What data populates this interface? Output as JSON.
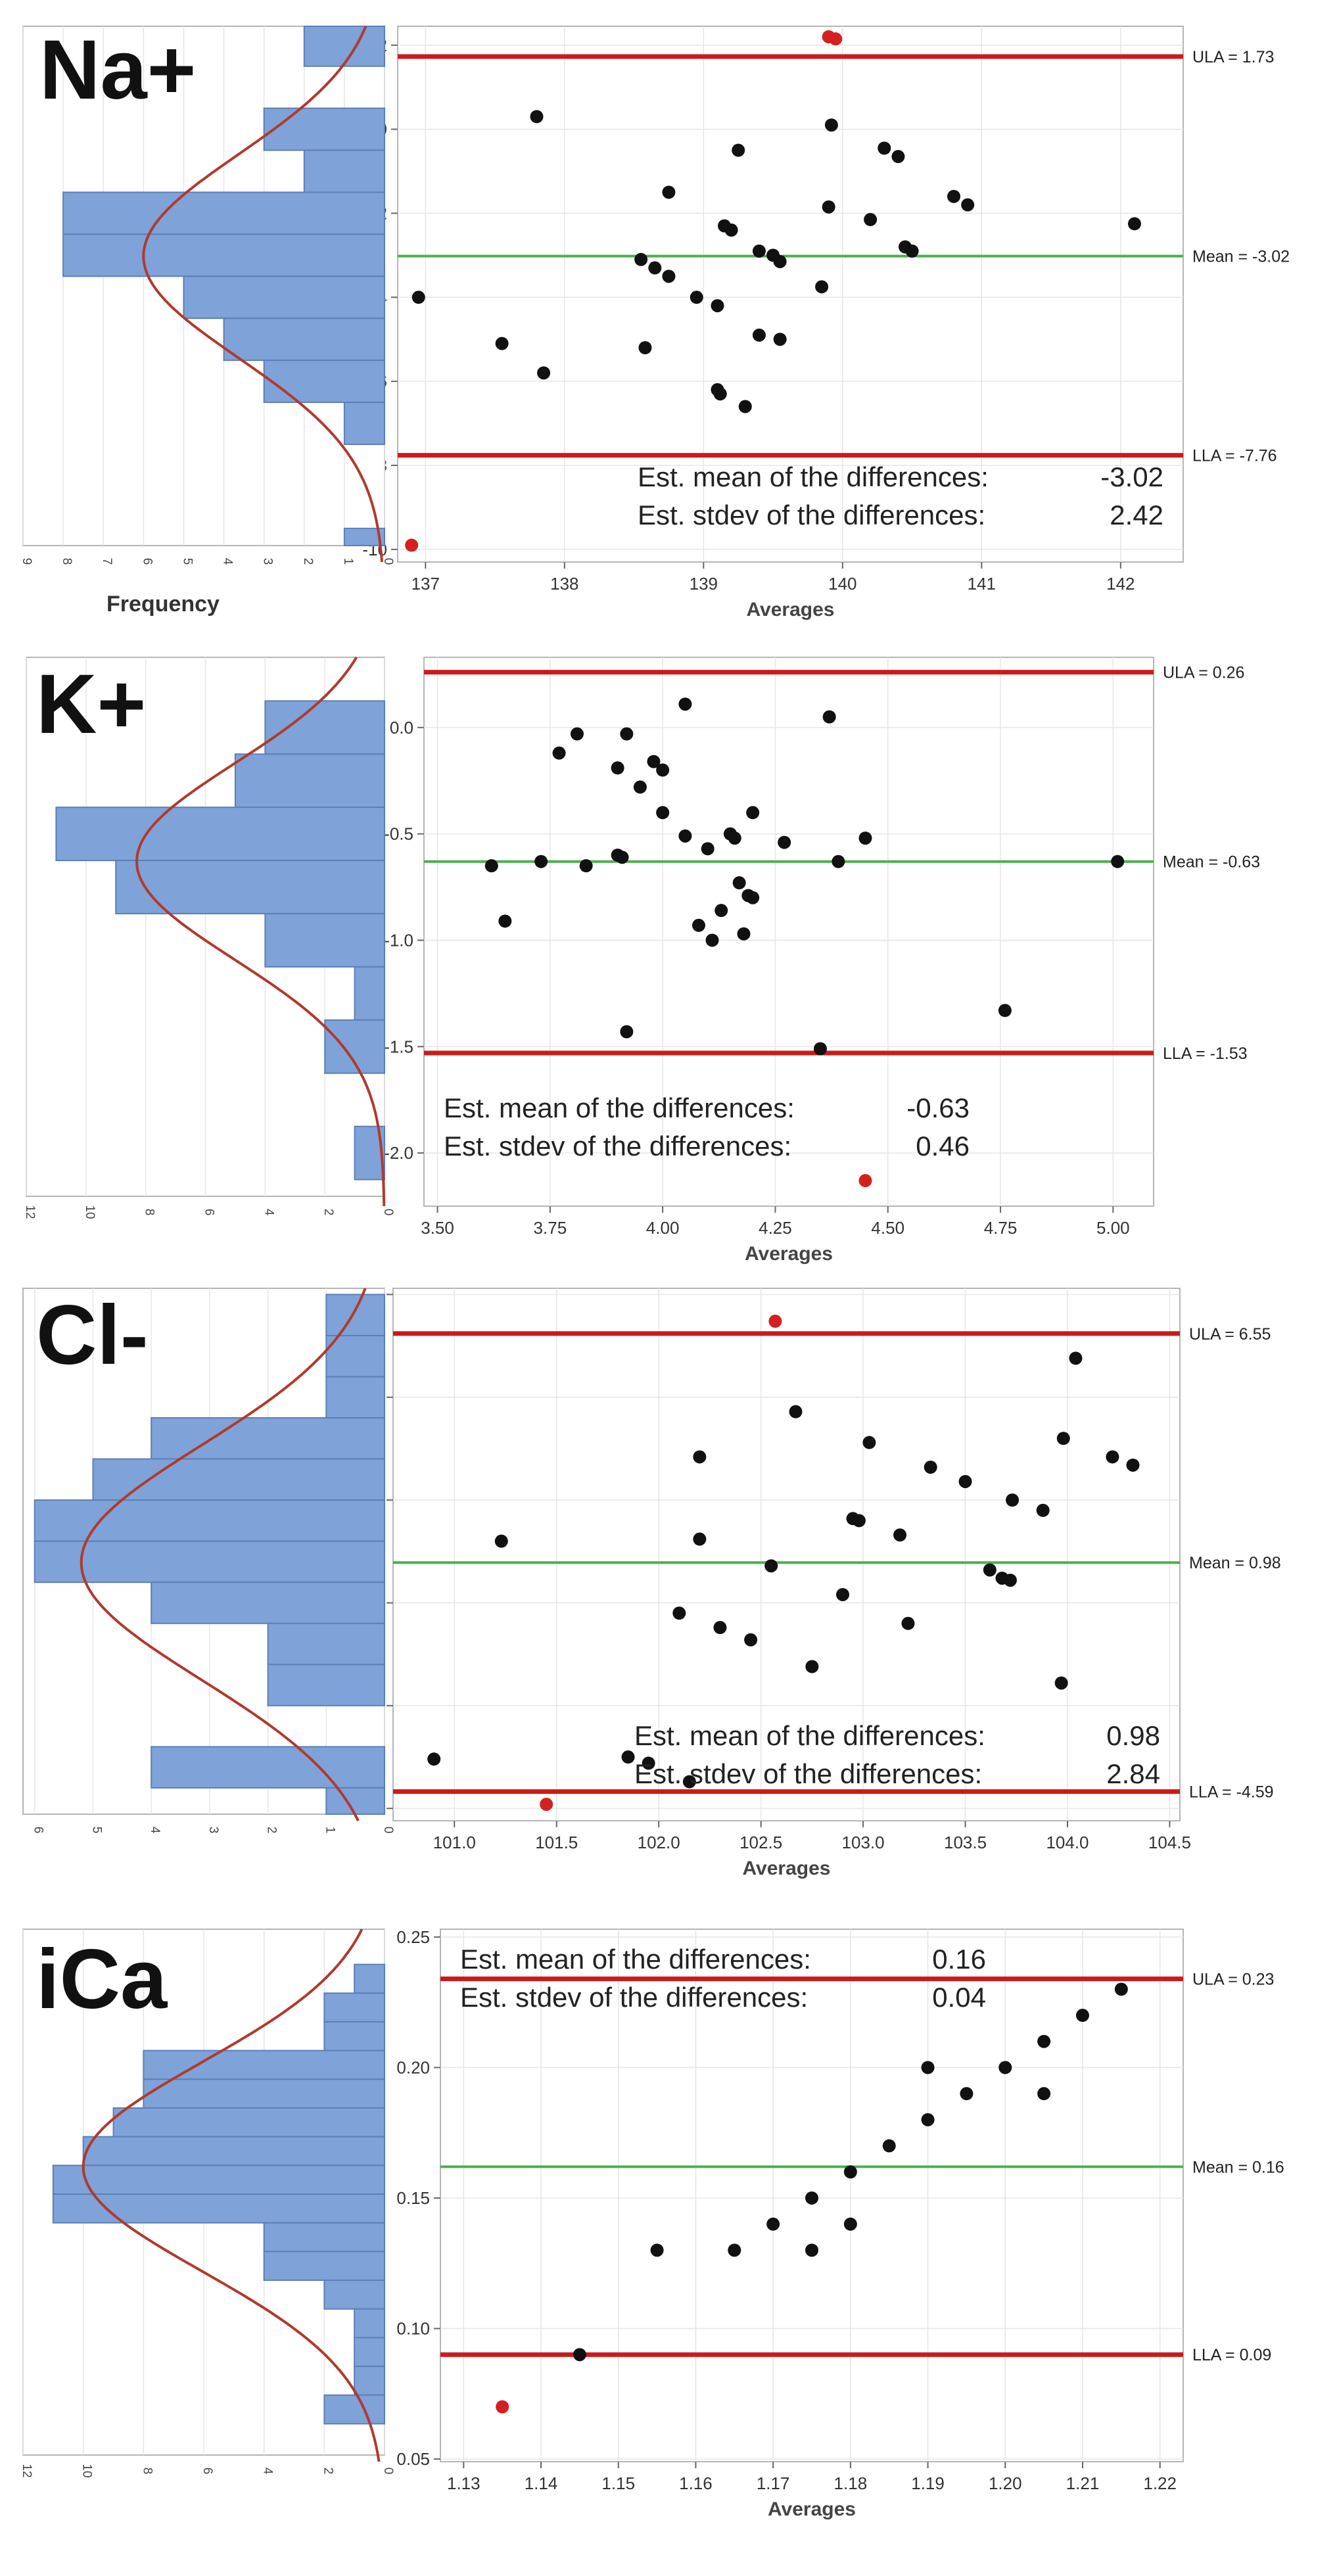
{
  "figure": {
    "colors": {
      "hist_fill": "#7fa2d8",
      "hist_edge": "#5d7fb5",
      "normal_curve": "#b03a2e",
      "limit_line": "#cc1a1a",
      "mean_line": "#4cb04c",
      "point": "#111111",
      "outlier_point": "#d42020",
      "grid": "#e6e6e6",
      "frame": "#b5b5b5",
      "annotation_text": "#222222"
    }
  },
  "chart_data": [
    {
      "id": "na",
      "type": "scatter",
      "title": "Na+",
      "xlabel": "Averages",
      "ylabel": "",
      "hist_xlabel": "Frequency",
      "xlim": [
        136.8,
        142.45
      ],
      "ylim": [
        -10.3,
        2.45
      ],
      "xticks": [
        137,
        138,
        139,
        140,
        141,
        142
      ],
      "xtick_labels": [
        "137",
        "138",
        "139",
        "140",
        "141",
        "142"
      ],
      "yticks": [
        2,
        0,
        -2,
        -4,
        -6,
        -8,
        -10
      ],
      "ytick_labels": [
        "2",
        "0",
        "-2",
        "-4",
        "-6",
        "-8",
        "-10"
      ],
      "points": [
        [
          137.8,
          0.3
        ],
        [
          136.95,
          -4.0
        ],
        [
          137.55,
          -5.1
        ],
        [
          137.85,
          -5.8
        ],
        [
          138.75,
          -1.5
        ],
        [
          138.55,
          -3.1
        ],
        [
          138.65,
          -3.3
        ],
        [
          138.75,
          -3.5
        ],
        [
          138.95,
          -4.0
        ],
        [
          138.58,
          -5.2
        ],
        [
          139.1,
          -4.2
        ],
        [
          139.15,
          -2.3
        ],
        [
          139.2,
          -2.4
        ],
        [
          139.25,
          -0.5
        ],
        [
          139.4,
          -2.9
        ],
        [
          139.5,
          -3.0
        ],
        [
          139.55,
          -3.15
        ],
        [
          139.4,
          -4.9
        ],
        [
          139.55,
          -5.0
        ],
        [
          139.1,
          -6.2
        ],
        [
          139.12,
          -6.3
        ],
        [
          139.3,
          -6.6
        ],
        [
          139.85,
          -3.75
        ],
        [
          139.9,
          -1.85
        ],
        [
          139.92,
          0.1
        ],
        [
          140.2,
          -2.15
        ],
        [
          140.3,
          -0.45
        ],
        [
          140.4,
          -0.65
        ],
        [
          140.45,
          -2.8
        ],
        [
          140.5,
          -2.9
        ],
        [
          140.8,
          -1.6
        ],
        [
          140.9,
          -1.8
        ],
        [
          142.1,
          -2.25
        ]
      ],
      "outliers": [
        [
          139.9,
          2.2
        ],
        [
          139.95,
          2.15
        ],
        [
          136.9,
          -9.9
        ]
      ],
      "extra_mark": [
        137.5,
        -2.0
      ],
      "mean": -3.02,
      "ula": 1.73,
      "lla": -7.76,
      "ula_label": "ULA = 1.73",
      "mean_label": "Mean = -3.02",
      "lla_label": "LLA = -7.76",
      "annotation_lines": [
        [
          "Est. mean of the differences:",
          "-3.02"
        ],
        [
          "Est. stdev of the differences:",
          "2.42"
        ]
      ],
      "annotation_pos": "bottom-right",
      "histogram": {
        "bins": [
          [
            1.5,
            2.5,
            2
          ],
          [
            0.5,
            1.5,
            0
          ],
          [
            -0.5,
            0.5,
            3
          ],
          [
            -1.5,
            -0.5,
            2
          ],
          [
            -2.5,
            -1.5,
            8
          ],
          [
            -3.5,
            -2.5,
            8
          ],
          [
            -4.5,
            -3.5,
            5
          ],
          [
            -5.5,
            -4.5,
            4
          ],
          [
            -6.5,
            -5.5,
            3
          ],
          [
            -7.5,
            -6.5,
            1
          ],
          [
            -8.5,
            -7.5,
            0
          ],
          [
            -9.5,
            -8.5,
            0
          ],
          [
            -10.5,
            -9.5,
            1
          ]
        ],
        "freq_max": 9,
        "freq_ticks": [
          9,
          8,
          7,
          6,
          5,
          4,
          3,
          2,
          1,
          0
        ],
        "freq_tick_labels": [
          "9",
          "8",
          "7",
          "6",
          "5",
          "4",
          "3",
          "2",
          "1",
          "0"
        ],
        "curve_peak": 6.0,
        "curve_sd": 2.42
      }
    },
    {
      "id": "k",
      "type": "scatter",
      "title": "K+",
      "xlabel": "Averages",
      "ylabel": "",
      "hist_xlabel": "",
      "xlim": [
        3.47,
        5.09
      ],
      "ylim": [
        -2.25,
        0.33
      ],
      "xticks": [
        3.5,
        3.75,
        4.0,
        4.25,
        4.5,
        4.75,
        5.0
      ],
      "xtick_labels": [
        "3.50",
        "3.75",
        "4.00",
        "4.25",
        "4.50",
        "4.75",
        "5.00"
      ],
      "yticks": [
        0.0,
        -0.5,
        -1.0,
        -1.5,
        -2.0
      ],
      "ytick_labels": [
        "0.0",
        "-0.5",
        "-1.0",
        "-1.5",
        "-2.0"
      ],
      "points": [
        [
          3.62,
          -0.65
        ],
        [
          3.65,
          -0.91
        ],
        [
          3.73,
          -0.63
        ],
        [
          3.77,
          -0.12
        ],
        [
          3.81,
          -0.03
        ],
        [
          3.83,
          -0.65
        ],
        [
          3.9,
          -0.19
        ],
        [
          3.9,
          -0.6
        ],
        [
          3.91,
          -0.61
        ],
        [
          3.92,
          -0.03
        ],
        [
          3.92,
          -1.43
        ],
        [
          3.95,
          -0.28
        ],
        [
          3.98,
          -0.16
        ],
        [
          4.0,
          -0.2
        ],
        [
          4.0,
          -0.4
        ],
        [
          4.05,
          0.11
        ],
        [
          4.05,
          -0.51
        ],
        [
          4.08,
          -0.93
        ],
        [
          4.1,
          -0.57
        ],
        [
          4.11,
          -1.0
        ],
        [
          4.13,
          -0.86
        ],
        [
          4.15,
          -0.5
        ],
        [
          4.16,
          -0.52
        ],
        [
          4.17,
          -0.73
        ],
        [
          4.18,
          -0.97
        ],
        [
          4.19,
          -0.79
        ],
        [
          4.2,
          -0.8
        ],
        [
          4.2,
          -0.4
        ],
        [
          4.27,
          -0.54
        ],
        [
          4.37,
          0.05
        ],
        [
          4.39,
          -0.63
        ],
        [
          4.45,
          -0.52
        ],
        [
          4.76,
          -1.33
        ],
        [
          5.01,
          -0.63
        ],
        [
          4.35,
          -1.51
        ]
      ],
      "outliers": [
        [
          4.45,
          -2.13
        ]
      ],
      "mean": -0.63,
      "ula": 0.26,
      "lla": -1.53,
      "ula_label": "ULA = 0.26",
      "mean_label": "Mean = -0.63",
      "lla_label": "LLA = -1.53",
      "annotation_lines": [
        [
          "Est. mean of the differences:",
          "-0.63"
        ],
        [
          "Est. stdev of the differences:",
          "0.46"
        ]
      ],
      "annotation_pos": "bottom-left",
      "histogram": {
        "bins": [
          [
            -0.125,
            0.125,
            4
          ],
          [
            -0.375,
            -0.125,
            5
          ],
          [
            -0.625,
            -0.375,
            11
          ],
          [
            -0.875,
            -0.625,
            9
          ],
          [
            -1.125,
            -0.875,
            4
          ],
          [
            -1.375,
            -1.125,
            1
          ],
          [
            -1.625,
            -1.375,
            2
          ],
          [
            -1.875,
            -1.625,
            0
          ],
          [
            -2.125,
            -1.875,
            1
          ]
        ],
        "freq_max": 12,
        "freq_ticks": [
          12,
          10,
          8,
          6,
          4,
          2,
          0
        ],
        "freq_tick_labels": [
          "12",
          "10",
          "8",
          "6",
          "4",
          "2",
          "0"
        ],
        "curve_peak": 8.3,
        "curve_sd": 0.46
      }
    },
    {
      "id": "cl",
      "type": "scatter",
      "title": "Cl-",
      "xlabel": "Averages",
      "ylabel": "",
      "hist_xlabel": "",
      "xlim": [
        100.7,
        104.55
      ],
      "ylim": [
        -5.3,
        7.65
      ],
      "xticks": [
        101.0,
        101.5,
        102.0,
        102.5,
        103.0,
        103.5,
        104.0,
        104.5
      ],
      "xtick_labels": [
        "101.0",
        "101.5",
        "102.0",
        "102.5",
        "103.0",
        "103.5",
        "104.0",
        "104.5"
      ],
      "yticks": [
        7.5,
        5.0,
        2.5,
        0.0,
        -2.5,
        -5.0
      ],
      "ytick_labels": [
        "7.5",
        "5.0",
        "2.5",
        "0.0",
        "-2.5",
        "-5.0"
      ],
      "points": [
        [
          100.9,
          -3.8
        ],
        [
          101.23,
          1.5
        ],
        [
          101.85,
          -3.75
        ],
        [
          101.95,
          -3.9
        ],
        [
          102.1,
          -0.25
        ],
        [
          102.15,
          -4.35
        ],
        [
          102.2,
          3.55
        ],
        [
          102.2,
          1.55
        ],
        [
          102.3,
          -0.6
        ],
        [
          102.45,
          -0.9
        ],
        [
          102.55,
          0.9
        ],
        [
          102.67,
          4.65
        ],
        [
          102.75,
          -1.55
        ],
        [
          102.9,
          0.2
        ],
        [
          102.95,
          2.05
        ],
        [
          102.98,
          2.0
        ],
        [
          103.03,
          3.9
        ],
        [
          103.18,
          1.65
        ],
        [
          103.22,
          -0.5
        ],
        [
          103.33,
          3.3
        ],
        [
          103.5,
          2.95
        ],
        [
          103.62,
          0.8
        ],
        [
          103.68,
          0.6
        ],
        [
          103.72,
          0.55
        ],
        [
          103.73,
          2.5
        ],
        [
          103.88,
          2.25
        ],
        [
          103.97,
          -1.95
        ],
        [
          103.98,
          4.0
        ],
        [
          104.04,
          5.95
        ],
        [
          104.22,
          3.55
        ],
        [
          104.32,
          3.35
        ]
      ],
      "outliers": [
        [
          102.57,
          6.85
        ],
        [
          101.45,
          -4.9
        ]
      ],
      "mean": 0.98,
      "ula": 6.55,
      "lla": -4.59,
      "ula_label": "ULA = 6.55",
      "mean_label": "Mean = 0.98",
      "lla_label": "LLA = -4.59",
      "annotation_lines": [
        [
          "Est. mean of the differences:",
          "0.98"
        ],
        [
          "Est. stdev of the differences:",
          "2.84"
        ]
      ],
      "annotation_pos": "bottom-right",
      "histogram": {
        "bins": [
          [
            6.5,
            7.5,
            1
          ],
          [
            5.5,
            6.5,
            1
          ],
          [
            4.5,
            5.5,
            1
          ],
          [
            3.5,
            4.5,
            4
          ],
          [
            2.5,
            3.5,
            5
          ],
          [
            1.5,
            2.5,
            6
          ],
          [
            0.5,
            1.5,
            6
          ],
          [
            -0.5,
            0.5,
            4
          ],
          [
            -1.5,
            -0.5,
            2
          ],
          [
            -2.5,
            -1.5,
            2
          ],
          [
            -3.5,
            -2.5,
            0
          ],
          [
            -4.5,
            -3.5,
            4
          ],
          [
            -5.5,
            -4.5,
            1
          ]
        ],
        "freq_max": 6.2,
        "freq_ticks": [
          6,
          5,
          4,
          3,
          2,
          1,
          0
        ],
        "freq_tick_labels": [
          "6",
          "5",
          "4",
          "3",
          "2",
          "1",
          "0"
        ],
        "curve_peak": 5.2,
        "curve_sd": 2.84
      }
    },
    {
      "id": "ica",
      "type": "scatter",
      "title": "iCa",
      "xlabel": "Averages",
      "ylabel": "",
      "hist_xlabel": "",
      "xlim": [
        1.127,
        1.223
      ],
      "ylim": [
        0.049,
        0.253
      ],
      "xticks": [
        1.13,
        1.14,
        1.15,
        1.16,
        1.17,
        1.18,
        1.19,
        1.2,
        1.21,
        1.22
      ],
      "xtick_labels": [
        "1.13",
        "1.14",
        "1.15",
        "1.16",
        "1.17",
        "1.18",
        "1.19",
        "1.20",
        "1.21",
        "1.22"
      ],
      "yticks": [
        0.25,
        0.2,
        0.15,
        0.1,
        0.05
      ],
      "ytick_labels": [
        "0.25",
        "0.20",
        "0.15",
        "0.10",
        "0.05"
      ],
      "points": [
        [
          1.145,
          0.09
        ],
        [
          1.155,
          0.13
        ],
        [
          1.165,
          0.13
        ],
        [
          1.17,
          0.14
        ],
        [
          1.175,
          0.15
        ],
        [
          1.175,
          0.13
        ],
        [
          1.18,
          0.16
        ],
        [
          1.18,
          0.14
        ],
        [
          1.185,
          0.17
        ],
        [
          1.19,
          0.18
        ],
        [
          1.19,
          0.2
        ],
        [
          1.195,
          0.19
        ],
        [
          1.2,
          0.2
        ],
        [
          1.205,
          0.21
        ],
        [
          1.205,
          0.19
        ],
        [
          1.21,
          0.22
        ],
        [
          1.215,
          0.23
        ]
      ],
      "outliers": [
        [
          1.135,
          0.07
        ]
      ],
      "mean": 0.162,
      "ula": 0.234,
      "lla": 0.09,
      "ula_label": "ULA = 0.23",
      "mean_label": "Mean = 0.16",
      "lla_label": "LLA = 0.09",
      "annotation_lines": [
        [
          "Est. mean of the differences:",
          "0.16"
        ],
        [
          "Est. stdev of the differences:",
          "0.04"
        ]
      ],
      "annotation_pos": "top-left",
      "histogram": {
        "bins": [
          [
            0.2285,
            0.2395,
            1
          ],
          [
            0.2175,
            0.2285,
            2
          ],
          [
            0.2065,
            0.2175,
            2
          ],
          [
            0.1955,
            0.2065,
            8
          ],
          [
            0.1845,
            0.1955,
            8
          ],
          [
            0.1735,
            0.1845,
            9
          ],
          [
            0.1625,
            0.1735,
            10
          ],
          [
            0.1515,
            0.1625,
            11
          ],
          [
            0.1405,
            0.1515,
            11
          ],
          [
            0.1295,
            0.1405,
            4
          ],
          [
            0.1185,
            0.1295,
            4
          ],
          [
            0.1075,
            0.1185,
            2
          ],
          [
            0.0965,
            0.1075,
            1
          ],
          [
            0.0855,
            0.0965,
            1
          ],
          [
            0.0745,
            0.0855,
            1
          ],
          [
            0.0635,
            0.0745,
            2
          ]
        ],
        "freq_max": 12,
        "freq_ticks": [
          12,
          10,
          8,
          6,
          4,
          2,
          0
        ],
        "freq_tick_labels": [
          "12",
          "10",
          "8",
          "6",
          "4",
          "2",
          "0"
        ],
        "curve_peak": 10.0,
        "curve_sd": 0.04
      }
    }
  ]
}
